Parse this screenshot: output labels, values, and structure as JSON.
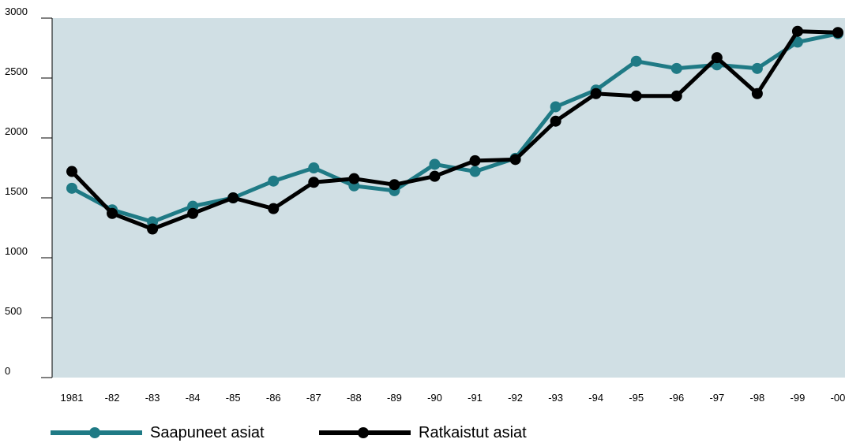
{
  "chart_data": {
    "type": "line",
    "categories": [
      "1981",
      "-82",
      "-83",
      "-84",
      "-85",
      "-86",
      "-87",
      "-88",
      "-89",
      "-90",
      "-91",
      "-92",
      "-93",
      "-94",
      "-95",
      "-96",
      "-97",
      "-98",
      "-99",
      "-00"
    ],
    "series": [
      {
        "name": "Saapuneet asiat",
        "color": "#1f7a85",
        "values": [
          1580,
          1400,
          1300,
          1430,
          1500,
          1640,
          1750,
          1600,
          1560,
          1780,
          1720,
          1830,
          2260,
          2400,
          2640,
          2580,
          2610,
          2580,
          2800,
          2870
        ]
      },
      {
        "name": "Ratkaistut asiat",
        "color": "#000000",
        "values": [
          1720,
          1370,
          1240,
          1370,
          1500,
          1410,
          1630,
          1660,
          1610,
          1680,
          1810,
          1820,
          2140,
          2370,
          2350,
          2350,
          2670,
          2370,
          2890,
          2880
        ]
      }
    ],
    "ylim": [
      0,
      3000
    ],
    "yticks": [
      0,
      500,
      1000,
      1500,
      2000,
      2500,
      3000
    ],
    "grid": false,
    "legend_position": "bottom-left",
    "plot_background": "#d0dfe4",
    "title": "",
    "xlabel": "",
    "ylabel": ""
  }
}
